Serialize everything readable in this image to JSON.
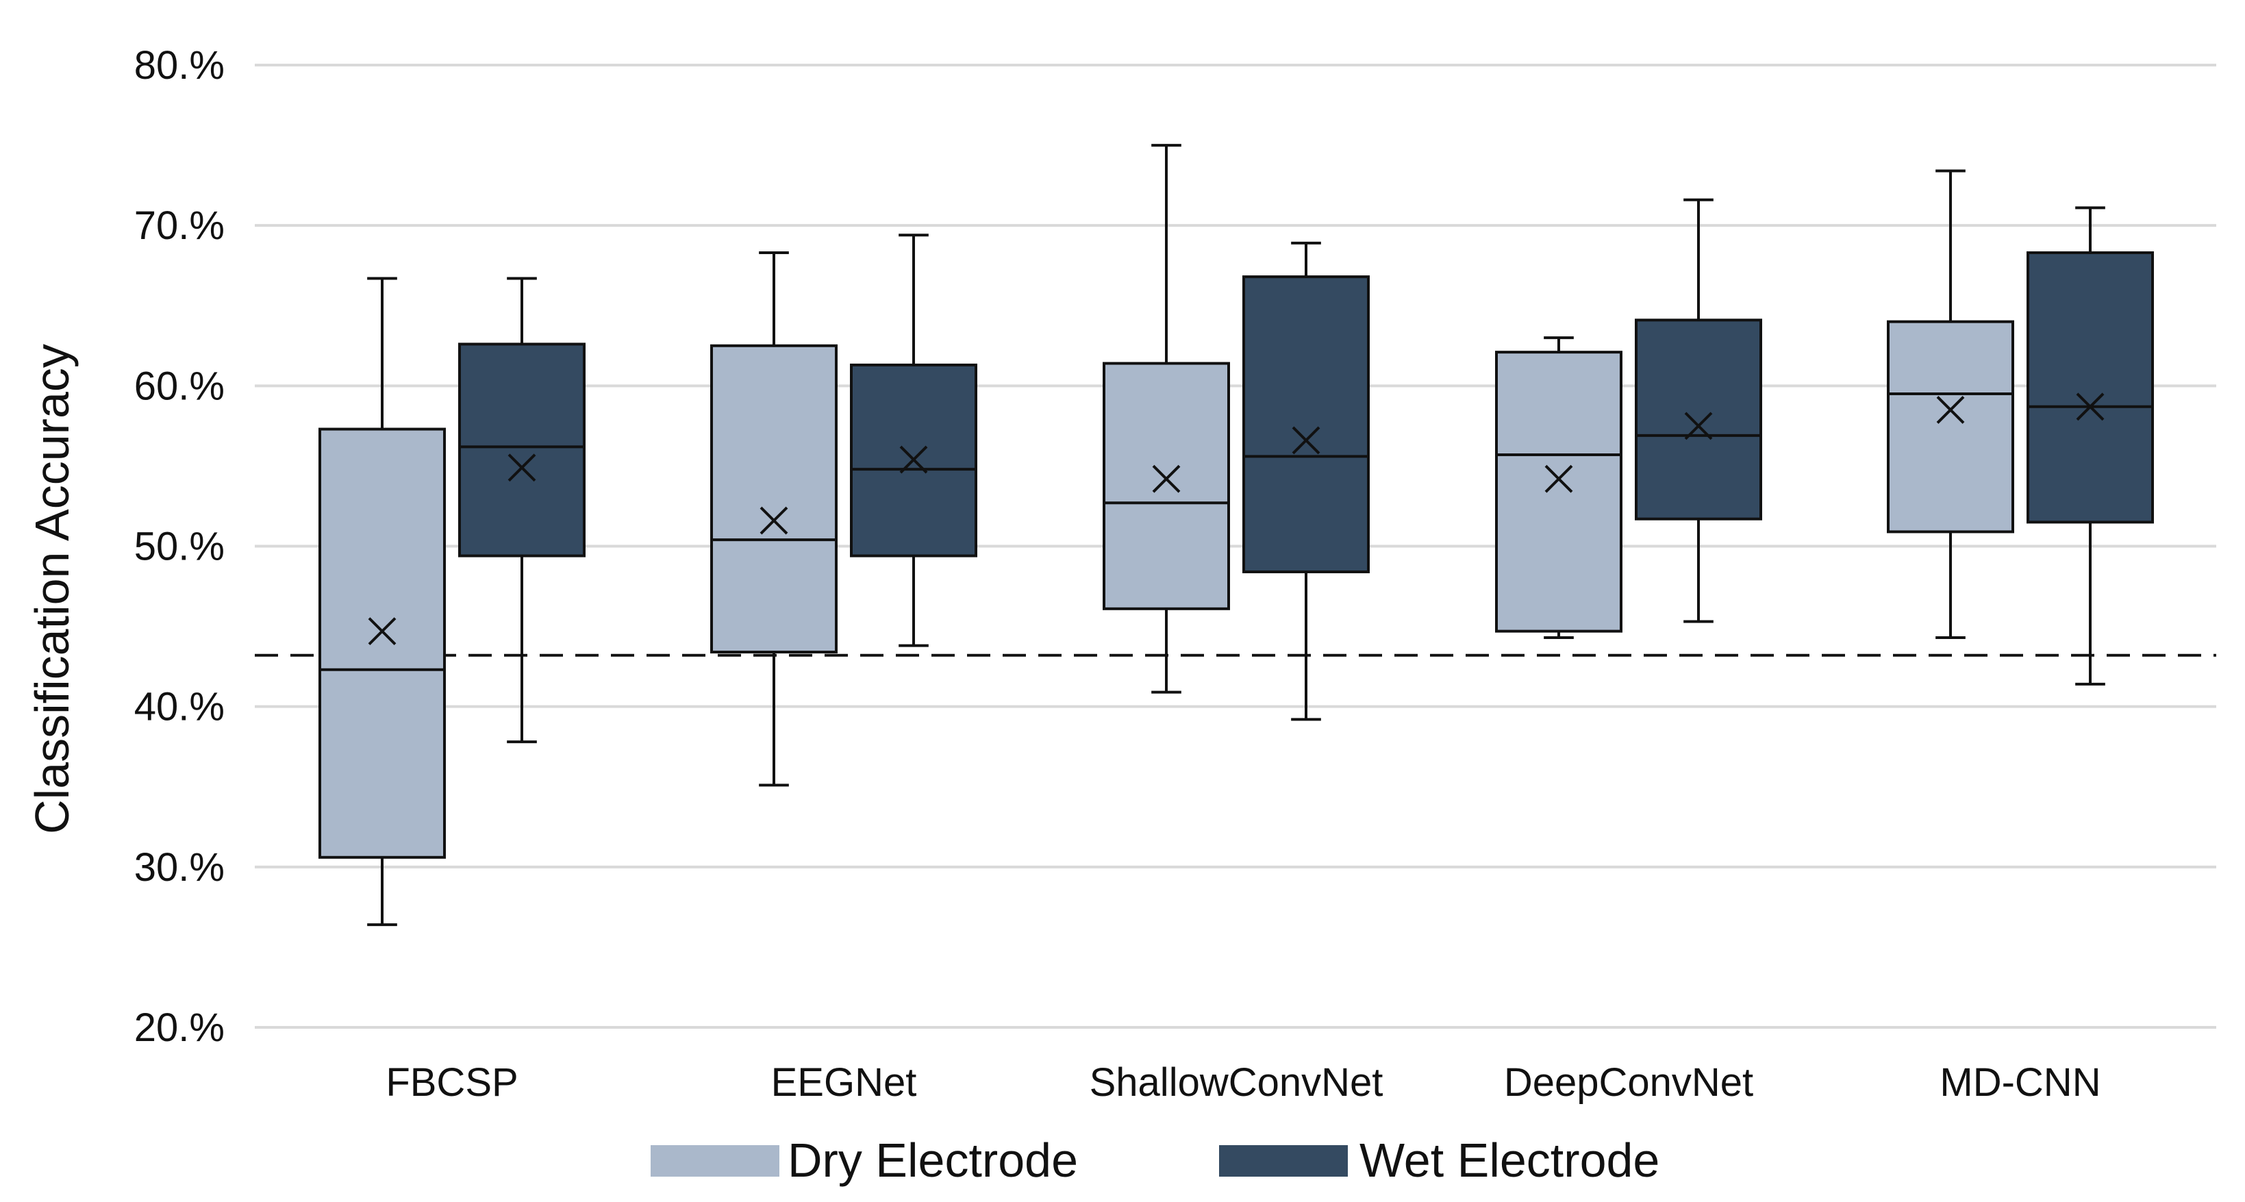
{
  "chart_data": {
    "type": "box",
    "ylabel": "Classification Accuracy",
    "ylim": [
      20,
      80
    ],
    "y_ticks": [
      20,
      30,
      40,
      50,
      60,
      70,
      80
    ],
    "y_tick_labels": [
      "20.%",
      "30.%",
      "40.%",
      "50.%",
      "60.%",
      "70.%",
      "80.%"
    ],
    "grid": "horizontal",
    "legend_position": "bottom-center",
    "categories": [
      "FBCSP",
      "EEGNet",
      "ShallowConvNet",
      "DeepConvNet",
      "MD-CNN"
    ],
    "reference_line": {
      "y": 43.2,
      "style": "dashed"
    },
    "series": [
      {
        "name": "Dry Electrode",
        "color": "#aab8cb",
        "boxes": [
          {
            "min": 26.4,
            "q1": 30.6,
            "median": 42.3,
            "q3": 57.3,
            "max": 66.7,
            "mean": 44.7
          },
          {
            "min": 35.1,
            "q1": 43.4,
            "median": 50.4,
            "q3": 62.5,
            "max": 68.3,
            "mean": 51.6
          },
          {
            "min": 40.9,
            "q1": 46.1,
            "median": 52.7,
            "q3": 61.4,
            "max": 75.0,
            "mean": 54.2
          },
          {
            "min": 44.3,
            "q1": 44.7,
            "median": 55.7,
            "q3": 62.1,
            "max": 63.0,
            "mean": 54.2
          },
          {
            "min": 44.3,
            "q1": 50.9,
            "median": 59.5,
            "q3": 64.0,
            "max": 73.4,
            "mean": 58.5
          }
        ]
      },
      {
        "name": "Wet Electrode",
        "color": "#344a61",
        "boxes": [
          {
            "min": 37.8,
            "q1": 49.4,
            "median": 56.2,
            "q3": 62.6,
            "max": 66.7,
            "mean": 54.9
          },
          {
            "min": 43.8,
            "q1": 49.4,
            "median": 54.8,
            "q3": 61.3,
            "max": 69.4,
            "mean": 55.4
          },
          {
            "min": 39.2,
            "q1": 48.4,
            "median": 55.6,
            "q3": 66.8,
            "max": 68.9,
            "mean": 56.6
          },
          {
            "min": 45.3,
            "q1": 51.7,
            "median": 56.9,
            "q3": 64.1,
            "max": 71.6,
            "mean": 57.5
          },
          {
            "min": 41.4,
            "q1": 51.5,
            "median": 58.7,
            "q3": 68.3,
            "max": 71.1,
            "mean": 58.7
          }
        ]
      }
    ]
  }
}
